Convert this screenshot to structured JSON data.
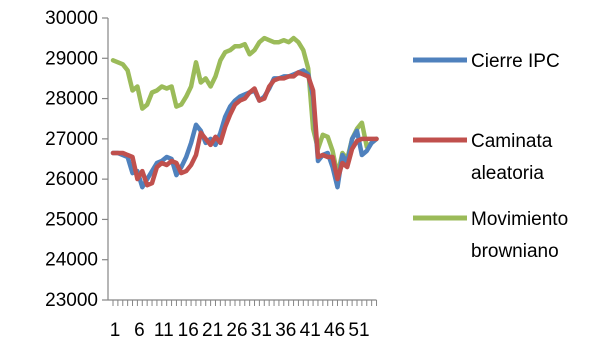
{
  "chart_data": {
    "type": "line",
    "title": "",
    "xlabel": "",
    "ylabel": "",
    "ylim": [
      23000,
      30000
    ],
    "yticks": [
      23000,
      24000,
      25000,
      26000,
      27000,
      28000,
      29000,
      30000
    ],
    "xlim": [
      1,
      55
    ],
    "xtick_labels": [
      "1",
      "6",
      "11",
      "16",
      "21",
      "26",
      "31",
      "36",
      "41",
      "46",
      "51"
    ],
    "grid": false,
    "legend_position": "right",
    "x": [
      1,
      2,
      3,
      4,
      5,
      6,
      7,
      8,
      9,
      10,
      11,
      12,
      13,
      14,
      15,
      16,
      17,
      18,
      19,
      20,
      21,
      22,
      23,
      24,
      25,
      26,
      27,
      28,
      29,
      30,
      31,
      32,
      33,
      34,
      35,
      36,
      37,
      38,
      39,
      40,
      41,
      42,
      43,
      44,
      45,
      46,
      47,
      48,
      49,
      50,
      51,
      52,
      53,
      54,
      55
    ],
    "series": [
      {
        "name": "Cierre  IPC",
        "color": "#4F81BD",
        "values": [
          26650,
          26650,
          26600,
          26550,
          26150,
          26200,
          25800,
          26000,
          26200,
          26400,
          26450,
          26550,
          26500,
          26100,
          26300,
          26550,
          26900,
          27350,
          27200,
          26900,
          27000,
          26850,
          27150,
          27550,
          27800,
          27950,
          28050,
          28100,
          28150,
          28200,
          27950,
          28050,
          28250,
          28500,
          28500,
          28550,
          28550,
          28600,
          28650,
          28700,
          28600,
          28050,
          26450,
          26600,
          26650,
          26300,
          25800,
          26600,
          26400,
          27000,
          27200,
          26600,
          26700,
          26900,
          27000
        ]
      },
      {
        "name": "Caminata aleatoria",
        "color": "#C0504D",
        "values": [
          26650,
          26650,
          26650,
          26600,
          26550,
          26000,
          26200,
          25850,
          25900,
          26300,
          26400,
          26350,
          26450,
          26400,
          26150,
          26200,
          26350,
          26600,
          27150,
          27000,
          26850,
          27050,
          26900,
          27300,
          27600,
          27850,
          27950,
          28000,
          28150,
          28250,
          27950,
          28000,
          28300,
          28450,
          28500,
          28500,
          28550,
          28550,
          28650,
          28600,
          28550,
          28200,
          26550,
          26600,
          26550,
          26550,
          26000,
          26400,
          26300,
          26750,
          26950,
          27000,
          27000,
          27000,
          27000
        ]
      },
      {
        "name": "Movimiento browniano",
        "color": "#9BBB59",
        "values": [
          28950,
          28900,
          28850,
          28700,
          28200,
          28300,
          27750,
          27850,
          28150,
          28200,
          28300,
          28250,
          28300,
          27800,
          27850,
          28050,
          28300,
          28900,
          28400,
          28500,
          28300,
          28550,
          28950,
          29150,
          29200,
          29300,
          29300,
          29350,
          29100,
          29200,
          29400,
          29500,
          29450,
          29400,
          29400,
          29450,
          29400,
          29500,
          29400,
          29200,
          28750,
          27250,
          26750,
          27100,
          27050,
          26700,
          26100,
          26650,
          26500,
          27000,
          27250,
          27400,
          26800,
          26900,
          27000
        ]
      }
    ]
  },
  "legend": [
    {
      "lines": [
        "Cierre  IPC"
      ],
      "color": "#4F81BD"
    },
    {
      "lines": [
        "Caminata",
        "aleatoria"
      ],
      "color": "#C0504D"
    },
    {
      "lines": [
        "Movimiento",
        "browniano"
      ],
      "color": "#9BBB59"
    }
  ]
}
